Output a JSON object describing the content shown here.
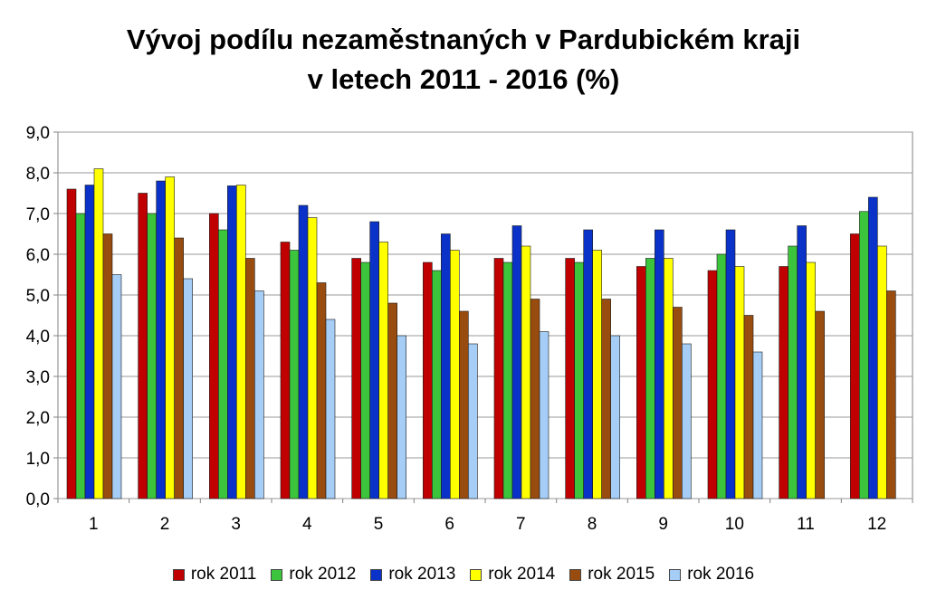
{
  "title_line1": "Vývoj podílu nezaměstnaných v Pardubickém kraji",
  "title_line2": "v letech 2011 - 2016 (%)",
  "chart_data": {
    "type": "bar",
    "title": "Vývoj podílu nezaměstnaných v Pardubickém kraji v letech 2011 - 2016 (%)",
    "categories": [
      "1",
      "2",
      "3",
      "4",
      "5",
      "6",
      "7",
      "8",
      "9",
      "10",
      "11",
      "12"
    ],
    "ylim": [
      0,
      9
    ],
    "yticks": [
      "0,0",
      "1,0",
      "2,0",
      "3,0",
      "4,0",
      "5,0",
      "6,0",
      "7,0",
      "8,0",
      "9,0"
    ],
    "grid": true,
    "legend_position": "bottom",
    "series": [
      {
        "name": "rok 2011",
        "color": "#C00000",
        "values": [
          7.6,
          7.5,
          7.0,
          6.3,
          5.9,
          5.8,
          5.9,
          5.9,
          5.7,
          5.6,
          5.7,
          6.5
        ]
      },
      {
        "name": "rok 2012",
        "color": "#3CC43C",
        "values": [
          7.0,
          7.0,
          6.6,
          6.1,
          5.8,
          5.6,
          5.8,
          5.8,
          5.9,
          6.0,
          6.2,
          7.05
        ]
      },
      {
        "name": "rok 2013",
        "color": "#0A32C8",
        "values": [
          7.7,
          7.8,
          7.68,
          7.2,
          6.8,
          6.5,
          6.7,
          6.6,
          6.6,
          6.6,
          6.7,
          7.4
        ]
      },
      {
        "name": "rok 2014",
        "color": "#FFFF00",
        "values": [
          8.1,
          7.9,
          7.7,
          6.9,
          6.3,
          6.1,
          6.2,
          6.1,
          5.9,
          5.7,
          5.8,
          6.2
        ]
      },
      {
        "name": "rok 2015",
        "color": "#994C0F",
        "values": [
          6.5,
          6.4,
          5.9,
          5.3,
          4.8,
          4.6,
          4.9,
          4.9,
          4.7,
          4.5,
          4.6,
          5.1
        ]
      },
      {
        "name": "rok 2016",
        "color": "#A5CDF5",
        "values": [
          5.5,
          5.4,
          5.1,
          4.4,
          4.0,
          3.8,
          4.1,
          4.0,
          3.8,
          3.6,
          null,
          null
        ]
      }
    ]
  }
}
